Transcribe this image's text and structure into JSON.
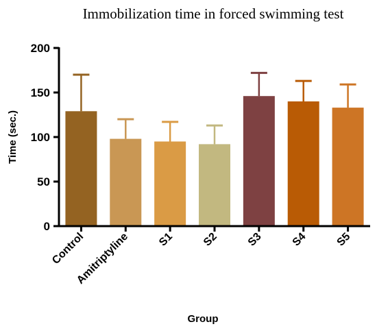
{
  "chart_data": {
    "type": "bar",
    "title": "Immobilization time in forced swimming test",
    "xlabel": "Group",
    "ylabel": "Time (sec.)",
    "ylim": [
      0,
      200
    ],
    "yticks": [
      0,
      50,
      100,
      150,
      200
    ],
    "categories": [
      "Control",
      "Amitriptyline",
      "S1",
      "S2",
      "S3",
      "S4",
      "S5"
    ],
    "values": [
      129,
      98,
      95,
      92,
      146,
      140,
      133
    ],
    "error_upper": [
      170,
      120,
      117,
      113,
      172,
      163,
      159
    ],
    "colors": [
      "#946322",
      "#C99754",
      "#DA9B45",
      "#C2B880",
      "#7E4142",
      "#B95B05",
      "#CD7525"
    ],
    "grid": false,
    "legend": "none"
  }
}
